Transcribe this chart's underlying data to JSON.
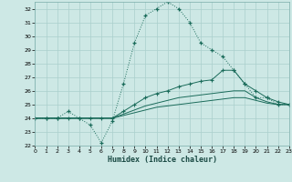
{
  "title": "",
  "xlabel": "Humidex (Indice chaleur)",
  "xlim": [
    0,
    23
  ],
  "ylim": [
    22,
    32.5
  ],
  "yticks": [
    22,
    23,
    24,
    25,
    26,
    27,
    28,
    29,
    30,
    31,
    32
  ],
  "xticks": [
    0,
    1,
    2,
    3,
    4,
    5,
    6,
    7,
    8,
    9,
    10,
    11,
    12,
    13,
    14,
    15,
    16,
    17,
    18,
    19,
    20,
    21,
    22,
    23
  ],
  "bg_color": "#cde8e5",
  "grid_color": "#aacfcc",
  "line_color": "#1a6b5a",
  "line1_x": [
    0,
    1,
    2,
    3,
    4,
    5,
    6,
    7,
    8,
    9,
    10,
    11,
    12,
    13,
    14,
    15,
    16,
    17,
    18,
    19,
    20,
    21,
    22,
    23
  ],
  "line1_y": [
    24,
    24,
    24,
    24.5,
    24,
    23.5,
    22.2,
    23.8,
    26.5,
    29.5,
    31.5,
    32,
    32.5,
    32,
    31,
    29.5,
    29,
    28.5,
    27.5,
    26.5,
    25.5,
    25.5,
    25,
    25
  ],
  "line2_x": [
    0,
    1,
    2,
    3,
    4,
    5,
    6,
    7,
    8,
    9,
    10,
    11,
    12,
    13,
    14,
    15,
    16,
    17,
    18,
    19,
    20,
    21,
    22,
    23
  ],
  "line2_y": [
    24,
    24,
    24,
    24,
    24,
    24,
    24,
    24,
    24.5,
    25.0,
    25.5,
    25.8,
    26.0,
    26.3,
    26.5,
    26.7,
    26.8,
    27.5,
    27.5,
    26.5,
    26.0,
    25.5,
    25.2,
    25.0
  ],
  "line3_x": [
    0,
    1,
    2,
    3,
    4,
    5,
    6,
    7,
    8,
    9,
    10,
    11,
    12,
    13,
    14,
    15,
    16,
    17,
    18,
    19,
    20,
    21,
    22,
    23
  ],
  "line3_y": [
    24,
    24,
    24,
    24,
    24,
    24,
    24,
    24,
    24.3,
    24.6,
    24.9,
    25.1,
    25.3,
    25.5,
    25.6,
    25.7,
    25.8,
    25.9,
    26.0,
    26.0,
    25.5,
    25.2,
    25.0,
    25.0
  ],
  "line4_x": [
    0,
    1,
    2,
    3,
    4,
    5,
    6,
    7,
    8,
    9,
    10,
    11,
    12,
    13,
    14,
    15,
    16,
    17,
    18,
    19,
    20,
    21,
    22,
    23
  ],
  "line4_y": [
    24,
    24,
    24,
    24,
    24,
    24,
    24,
    24,
    24.2,
    24.4,
    24.6,
    24.8,
    24.9,
    25.0,
    25.1,
    25.2,
    25.3,
    25.4,
    25.5,
    25.5,
    25.3,
    25.1,
    25.0,
    25.0
  ]
}
